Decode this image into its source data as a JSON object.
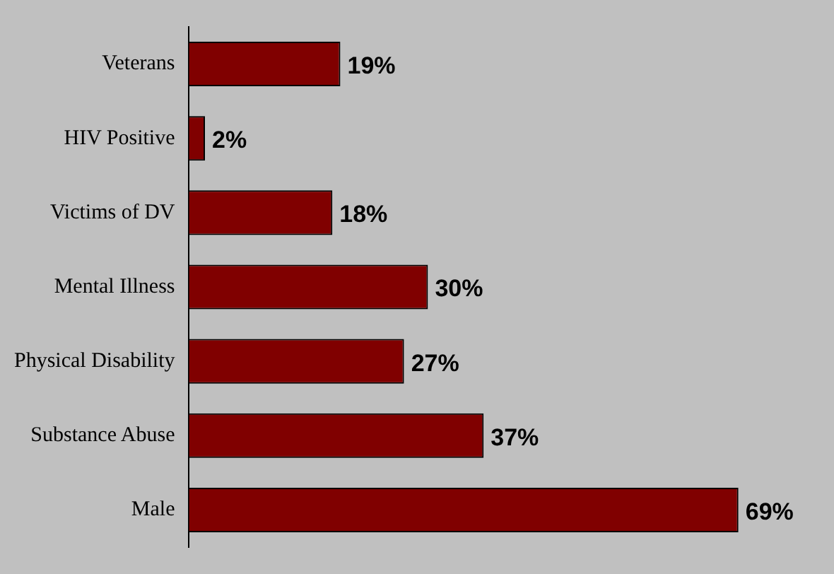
{
  "chart_data": {
    "type": "bar",
    "orientation": "horizontal",
    "categories": [
      "Veterans",
      "HIV Positive",
      "Victims of DV",
      "Mental Illness",
      "Physical Disability",
      "Substance Abuse",
      "Male"
    ],
    "values": [
      19,
      2,
      18,
      30,
      27,
      37,
      69
    ],
    "value_labels": [
      "19%",
      "2%",
      "18%",
      "30%",
      "27%",
      "37%",
      "69%"
    ],
    "color": "#800000",
    "legend": false,
    "tick_labels": "y"
  }
}
